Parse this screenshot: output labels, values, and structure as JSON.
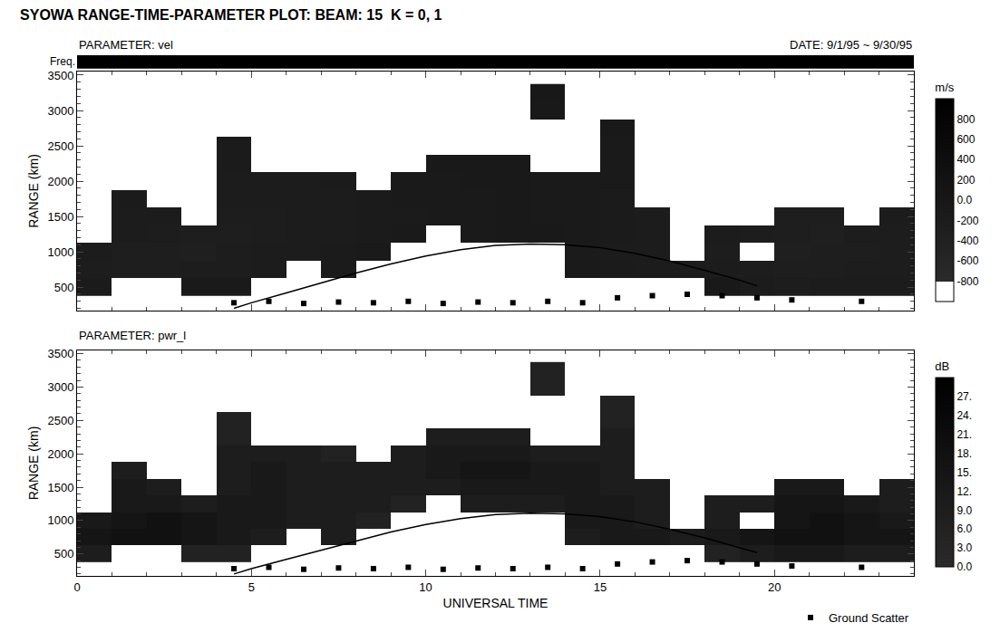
{
  "chart_data": {
    "type": "heatmap",
    "title": "SYOWA RANGE-TIME-PARAMETER PLOT: BEAM: 15  K = 0, 1",
    "x_label": "UNIVERSAL TIME",
    "y_label": "RANGE (km)",
    "freq_label": "Freq.",
    "date": "DATE: 9/1/95 ~ 9/30/95",
    "xlim": [
      0,
      24
    ],
    "xticks": [
      0,
      5,
      10,
      15,
      20
    ],
    "ylim": [
      170,
      3550
    ],
    "yticks": [
      500,
      1000,
      1500,
      2000,
      2500,
      3000,
      3500
    ],
    "legend": "bottom right",
    "x": [
      0.5,
      1.5,
      2.5,
      3.5,
      4.5,
      5.5,
      6.5,
      7.5,
      8.5,
      9.5,
      10.5,
      11.5,
      12.5,
      13.5,
      14.5,
      15.5,
      16.5,
      17.5,
      18.5,
      19.5,
      20.5,
      21.5,
      22.5,
      23.5
    ],
    "y": [
      500,
      750,
      1000,
      1250,
      1500,
      1750,
      2000,
      2250,
      2500,
      2750,
      3000,
      3250
    ],
    "panels": [
      {
        "label": "PARAMETER: vel",
        "unit": "m/s",
        "colorbar_range": [
          -1000,
          1000
        ],
        "colorbar_ticks": [
          -800,
          -600,
          -400,
          -200,
          {
            "value": 0,
            "label": "0.0"
          },
          200,
          400,
          600,
          800
        ],
        "z": [
          [
            -150,
            null,
            null,
            -100,
            -120,
            null,
            null,
            null,
            null,
            null,
            null,
            null,
            null,
            null,
            null,
            null,
            null,
            null,
            -80,
            -200,
            -250,
            -220,
            -180,
            -200
          ],
          [
            -250,
            -300,
            -280,
            -260,
            -240,
            -200,
            null,
            -150,
            null,
            null,
            null,
            null,
            null,
            null,
            -100,
            -150,
            -200,
            -180,
            -220,
            -250,
            -300,
            -280,
            -260,
            -240
          ],
          [
            -200,
            -280,
            -300,
            -320,
            -260,
            -220,
            -180,
            -160,
            -120,
            null,
            null,
            null,
            null,
            null,
            -150,
            -180,
            -200,
            null,
            -240,
            null,
            -320,
            -300,
            -280,
            -260
          ],
          [
            null,
            -220,
            -260,
            -280,
            -300,
            -250,
            -200,
            -180,
            -150,
            -120,
            null,
            -100,
            -80,
            -90,
            -120,
            -160,
            -200,
            null,
            -220,
            -240,
            -300,
            -320,
            -260,
            -240
          ],
          [
            null,
            -180,
            -200,
            null,
            -260,
            -240,
            -220,
            -200,
            -160,
            -140,
            -120,
            -100,
            -90,
            -100,
            -130,
            -150,
            -180,
            null,
            null,
            null,
            -280,
            -300,
            null,
            -220
          ],
          [
            null,
            -160,
            null,
            null,
            -200,
            -220,
            -200,
            -180,
            -150,
            -130,
            -110,
            -100,
            -90,
            -110,
            -120,
            -140,
            null,
            null,
            null,
            null,
            null,
            null,
            null,
            null
          ],
          [
            null,
            null,
            null,
            null,
            -180,
            -200,
            -190,
            -170,
            null,
            -120,
            -100,
            -90,
            -80,
            -100,
            -110,
            -130,
            null,
            null,
            null,
            null,
            null,
            null,
            null,
            null
          ],
          [
            null,
            null,
            null,
            null,
            -160,
            null,
            null,
            null,
            null,
            null,
            -90,
            -80,
            -70,
            null,
            null,
            -120,
            null,
            null,
            null,
            null,
            null,
            null,
            null,
            null
          ],
          [
            null,
            null,
            null,
            null,
            -150,
            null,
            null,
            null,
            null,
            null,
            null,
            null,
            null,
            null,
            null,
            -100,
            null,
            null,
            null,
            null,
            null,
            null,
            null,
            null
          ],
          [
            null,
            null,
            null,
            null,
            null,
            null,
            null,
            null,
            null,
            null,
            null,
            null,
            null,
            null,
            null,
            -90,
            null,
            null,
            null,
            null,
            null,
            null,
            null,
            null
          ],
          [
            null,
            null,
            null,
            null,
            null,
            null,
            null,
            null,
            null,
            null,
            null,
            null,
            null,
            -60,
            null,
            null,
            null,
            null,
            null,
            null,
            null,
            null,
            null,
            null
          ],
          [
            null,
            null,
            null,
            null,
            null,
            null,
            null,
            null,
            null,
            null,
            null,
            null,
            null,
            -50,
            null,
            null,
            null,
            null,
            null,
            null,
            null,
            null,
            null,
            null
          ]
        ]
      },
      {
        "label": "PARAMETER: pwr_l",
        "unit": "dB",
        "colorbar_range": [
          0,
          30
        ],
        "colorbar_ticks": [
          {
            "value": 0,
            "label": "0.0"
          },
          {
            "value": 3,
            "label": "3.0"
          },
          {
            "value": 6,
            "label": "6.0"
          },
          {
            "value": 9,
            "label": "9.0"
          },
          {
            "value": 12,
            "label": "12."
          },
          {
            "value": 15,
            "label": "15."
          },
          {
            "value": 18,
            "label": "18."
          },
          {
            "value": 21,
            "label": "21."
          },
          {
            "value": 24,
            "label": "24."
          },
          {
            "value": 27,
            "label": "27."
          }
        ],
        "z": [
          [
            9,
            null,
            null,
            6,
            6,
            null,
            null,
            null,
            null,
            null,
            null,
            null,
            null,
            null,
            null,
            null,
            null,
            null,
            6,
            9,
            12,
            12,
            9,
            9
          ],
          [
            15,
            18,
            18,
            15,
            12,
            9,
            null,
            9,
            null,
            null,
            null,
            null,
            null,
            null,
            9,
            12,
            12,
            9,
            12,
            15,
            18,
            18,
            15,
            15
          ],
          [
            12,
            15,
            18,
            15,
            12,
            12,
            9,
            9,
            6,
            null,
            null,
            null,
            null,
            null,
            12,
            12,
            9,
            null,
            9,
            null,
            15,
            18,
            15,
            12
          ],
          [
            null,
            12,
            12,
            9,
            12,
            12,
            9,
            9,
            9,
            6,
            null,
            9,
            9,
            9,
            12,
            12,
            9,
            null,
            9,
            9,
            15,
            15,
            12,
            9
          ],
          [
            null,
            12,
            9,
            null,
            9,
            12,
            9,
            9,
            9,
            9,
            9,
            12,
            12,
            12,
            12,
            9,
            9,
            null,
            null,
            null,
            12,
            12,
            null,
            9
          ],
          [
            null,
            9,
            null,
            null,
            9,
            12,
            9,
            9,
            9,
            9,
            12,
            15,
            15,
            12,
            12,
            9,
            null,
            null,
            null,
            null,
            null,
            null,
            null,
            null
          ],
          [
            null,
            null,
            null,
            null,
            9,
            9,
            9,
            6,
            null,
            9,
            12,
            12,
            12,
            9,
            9,
            9,
            null,
            null,
            null,
            null,
            null,
            null,
            null,
            null
          ],
          [
            null,
            null,
            null,
            null,
            6,
            null,
            null,
            null,
            null,
            null,
            9,
            9,
            9,
            null,
            null,
            9,
            null,
            null,
            null,
            null,
            null,
            null,
            null,
            null
          ],
          [
            null,
            null,
            null,
            null,
            6,
            null,
            null,
            null,
            null,
            null,
            null,
            null,
            null,
            null,
            null,
            6,
            null,
            null,
            null,
            null,
            null,
            null,
            null,
            null
          ],
          [
            null,
            null,
            null,
            null,
            null,
            null,
            null,
            null,
            null,
            null,
            null,
            null,
            null,
            null,
            null,
            6,
            null,
            null,
            null,
            null,
            null,
            null,
            null,
            null
          ],
          [
            null,
            null,
            null,
            null,
            null,
            null,
            null,
            null,
            null,
            null,
            null,
            null,
            null,
            6,
            null,
            null,
            null,
            null,
            null,
            null,
            null,
            null,
            null,
            null
          ],
          [
            null,
            null,
            null,
            null,
            null,
            null,
            null,
            null,
            null,
            null,
            null,
            null,
            null,
            6,
            null,
            null,
            null,
            null,
            null,
            null,
            null,
            null,
            null,
            null
          ]
        ]
      }
    ],
    "curve": {
      "x": [
        4.5,
        5,
        6,
        7,
        8,
        9,
        10,
        11,
        12,
        13,
        14,
        15,
        16,
        17,
        18,
        19,
        19.5
      ],
      "y": [
        200,
        280,
        420,
        560,
        700,
        830,
        940,
        1030,
        1090,
        1110,
        1100,
        1060,
        980,
        870,
        740,
        600,
        520
      ]
    },
    "ground_scatter": {
      "name": "Ground Scatter",
      "color": "#000000",
      "marker": "square",
      "x": [
        4.5,
        5.5,
        6.5,
        7.5,
        8.5,
        9.5,
        10.5,
        11.5,
        12.5,
        13.5,
        14.5,
        15.5,
        16.5,
        17.5,
        18.5,
        19.5,
        20.5,
        22.5
      ],
      "y": [
        280,
        300,
        270,
        290,
        280,
        300,
        270,
        290,
        280,
        300,
        280,
        350,
        380,
        400,
        380,
        350,
        320,
        300
      ]
    }
  }
}
